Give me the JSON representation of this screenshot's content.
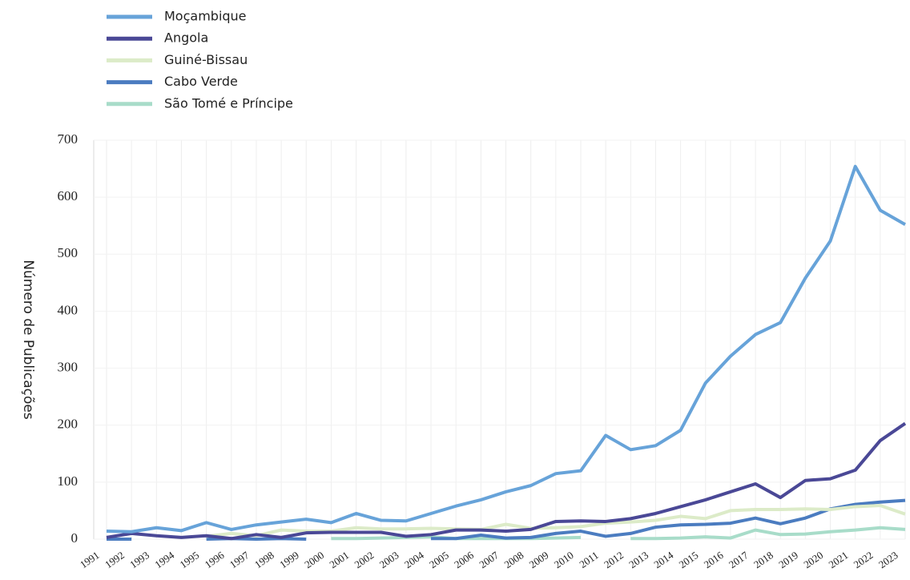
{
  "chart_data": {
    "type": "line",
    "y_label": "Número de Publicações",
    "categories": [
      "1991",
      "1992",
      "1993",
      "1994",
      "1995",
      "1996",
      "1997",
      "1998",
      "1999",
      "2000",
      "2001",
      "2002",
      "2003",
      "2004",
      "2005",
      "2006",
      "2007",
      "2008",
      "2009",
      "2010",
      "2011",
      "2012",
      "2013",
      "2014",
      "2015",
      "2016",
      "2017",
      "2018",
      "2019",
      "2020",
      "2021",
      "2022",
      "2023"
    ],
    "ylim": [
      0,
      700
    ],
    "yticks": [
      0,
      100,
      200,
      300,
      400,
      500,
      600,
      700
    ],
    "grid": true,
    "series": [
      {
        "name": "Moçambique",
        "color": "#67a3d9",
        "values": [
          14,
          13,
          20,
          15,
          29,
          17,
          25,
          30,
          35,
          29,
          45,
          33,
          32,
          45,
          58,
          69,
          83,
          94,
          115,
          120,
          182,
          157,
          164,
          191,
          274,
          321,
          359,
          380,
          458,
          523,
          654,
          577,
          552
        ]
      },
      {
        "name": "Angola",
        "color": "#4a4896",
        "values": [
          3,
          10,
          6,
          3,
          6,
          1,
          8,
          3,
          11,
          12,
          12,
          12,
          5,
          8,
          16,
          16,
          14,
          17,
          31,
          32,
          31,
          36,
          45,
          57,
          69,
          83,
          97,
          73,
          103,
          106,
          121,
          173,
          203
        ]
      },
      {
        "name": "Guiné-Bissau",
        "color": "#dcebc8",
        "values": [
          null,
          null,
          null,
          null,
          5,
          10,
          6,
          16,
          14,
          14,
          20,
          18,
          18,
          19,
          18,
          17,
          26,
          19,
          20,
          22,
          28,
          30,
          33,
          40,
          36,
          50,
          52,
          52,
          53,
          52,
          57,
          59,
          44
        ]
      },
      {
        "name": "Cabo Verde",
        "color": "#4b7cc0",
        "values": [
          0,
          0,
          null,
          null,
          0,
          1,
          0,
          1,
          0,
          null,
          null,
          null,
          null,
          1,
          1,
          7,
          2,
          3,
          10,
          14,
          5,
          10,
          21,
          25,
          26,
          28,
          37,
          27,
          37,
          53,
          61,
          65,
          68
        ]
      },
      {
        "name": "São Tomé e Príncipe",
        "color": "#a8dcc9",
        "values": [
          null,
          null,
          null,
          null,
          null,
          null,
          null,
          null,
          null,
          1,
          1,
          2,
          3,
          4,
          1,
          1,
          1,
          1,
          2,
          3,
          null,
          1,
          1,
          2,
          4,
          2,
          16,
          8,
          9,
          13,
          16,
          20,
          17
        ]
      }
    ]
  }
}
